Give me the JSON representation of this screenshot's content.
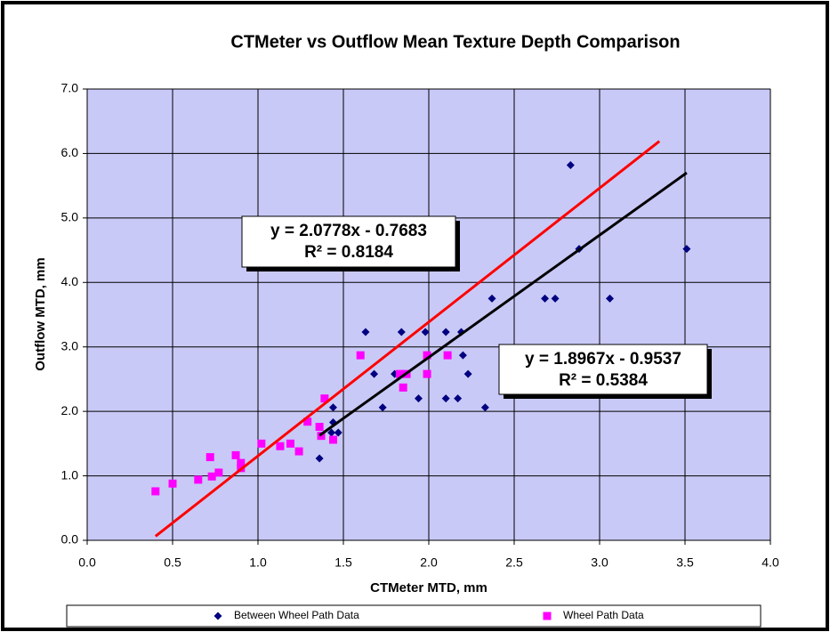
{
  "chart_data": {
    "type": "scatter",
    "title": "CTMeter vs Outflow Mean Texture Depth Comparison",
    "xlabel": "CTMeter MTD, mm",
    "ylabel": "Outflow MTD, mm",
    "xlim": [
      0,
      4
    ],
    "ylim": [
      0,
      7
    ],
    "xticks": [
      {
        "value": 0,
        "label": "0.0"
      },
      {
        "value": 0.5,
        "label": "0.5"
      },
      {
        "value": 1,
        "label": "1.0"
      },
      {
        "value": 1.5,
        "label": "1.5"
      },
      {
        "value": 2,
        "label": "2.0"
      },
      {
        "value": 2.5,
        "label": "2.5"
      },
      {
        "value": 3,
        "label": "3.0"
      },
      {
        "value": 3.5,
        "label": "3.5"
      },
      {
        "value": 4,
        "label": "4.0"
      }
    ],
    "yticks": [
      {
        "value": 0,
        "label": "0.0"
      },
      {
        "value": 1,
        "label": "1.0"
      },
      {
        "value": 2,
        "label": "2.0"
      },
      {
        "value": 3,
        "label": "3.0"
      },
      {
        "value": 4,
        "label": "4.0"
      },
      {
        "value": 5,
        "label": "5.0"
      },
      {
        "value": 6,
        "label": "6.0"
      },
      {
        "value": 7,
        "label": "7.0"
      }
    ],
    "grid": true,
    "plot_background": "#c9c9f7",
    "series": [
      {
        "name": "Between Wheel Path Data",
        "color": "#000080",
        "marker": "diamond",
        "x": [
          1.36,
          1.43,
          1.47,
          1.44,
          1.44,
          1.63,
          1.68,
          1.73,
          1.8,
          1.84,
          1.85,
          1.94,
          1.98,
          2.1,
          2.1,
          2.17,
          2.19,
          2.2,
          2.23,
          2.33,
          2.37,
          2.68,
          2.74,
          2.83,
          2.88,
          3.06,
          3.51
        ],
        "values": [
          1.27,
          1.67,
          1.67,
          1.83,
          2.06,
          3.23,
          2.58,
          2.06,
          2.58,
          3.23,
          2.58,
          2.2,
          3.23,
          3.23,
          2.2,
          2.2,
          3.23,
          2.87,
          2.58,
          2.06,
          3.75,
          3.75,
          3.75,
          5.82,
          4.52,
          3.75,
          4.52
        ]
      },
      {
        "name": "Wheel Path Data",
        "color": "#ff00ff",
        "marker": "square",
        "x": [
          0.4,
          0.5,
          0.65,
          0.72,
          0.73,
          0.77,
          0.87,
          0.9,
          0.9,
          1.02,
          1.13,
          1.19,
          1.24,
          1.29,
          1.36,
          1.37,
          1.39,
          1.44,
          1.6,
          1.83,
          1.85,
          1.87,
          1.99,
          1.99,
          2.11
        ],
        "values": [
          0.76,
          0.88,
          0.94,
          1.29,
          0.99,
          1.05,
          1.32,
          1.2,
          1.12,
          1.5,
          1.46,
          1.5,
          1.38,
          1.84,
          1.76,
          1.62,
          2.2,
          1.56,
          2.87,
          2.58,
          2.37,
          2.58,
          2.58,
          2.87,
          2.87
        ]
      }
    ],
    "trendlines": [
      {
        "color": "#ff0000",
        "x": [
          0.4,
          3.35
        ],
        "values": [
          0.063,
          6.19
        ],
        "equation": "y = 2.0778x - 0.7683",
        "r2": "R² = 0.8184"
      },
      {
        "color": "#000000",
        "x": [
          1.36,
          3.51
        ],
        "values": [
          1.626,
          5.7
        ],
        "equation": "y = 1.8967x - 0.9537",
        "r2": "R² = 0.5384"
      }
    ]
  }
}
